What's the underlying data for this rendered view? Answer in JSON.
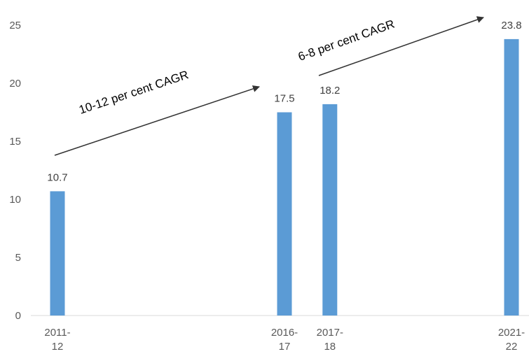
{
  "chart_data": {
    "type": "bar",
    "title": "",
    "xlabel": "",
    "ylabel": "",
    "ylim": [
      0,
      25
    ],
    "y_ticks": [
      "0",
      "5",
      "10",
      "15",
      "20",
      "25"
    ],
    "grid": false,
    "bar_color": "#5b9bd5",
    "categories": [
      {
        "line1": "2011-",
        "line2": "12",
        "year": 2011.5,
        "value": 10.7,
        "label": "10.7"
      },
      {
        "line1": "2016-",
        "line2": "17",
        "year": 2016.5,
        "value": 17.5,
        "label": "17.5"
      },
      {
        "line1": "2017-",
        "line2": "18",
        "year": 2017.5,
        "value": 18.2,
        "label": "18.2"
      },
      {
        "line1": "2021-",
        "line2": "22",
        "year": 2021.5,
        "value": 23.8,
        "label": "23.8"
      }
    ],
    "annotations": [
      {
        "text": "10-12 per cent CAGR",
        "from_year": 2011.5,
        "to_year": 2016.5
      },
      {
        "text": "6-8 per cent CAGR",
        "from_year": 2017.5,
        "to_year": 2021.5
      }
    ]
  }
}
